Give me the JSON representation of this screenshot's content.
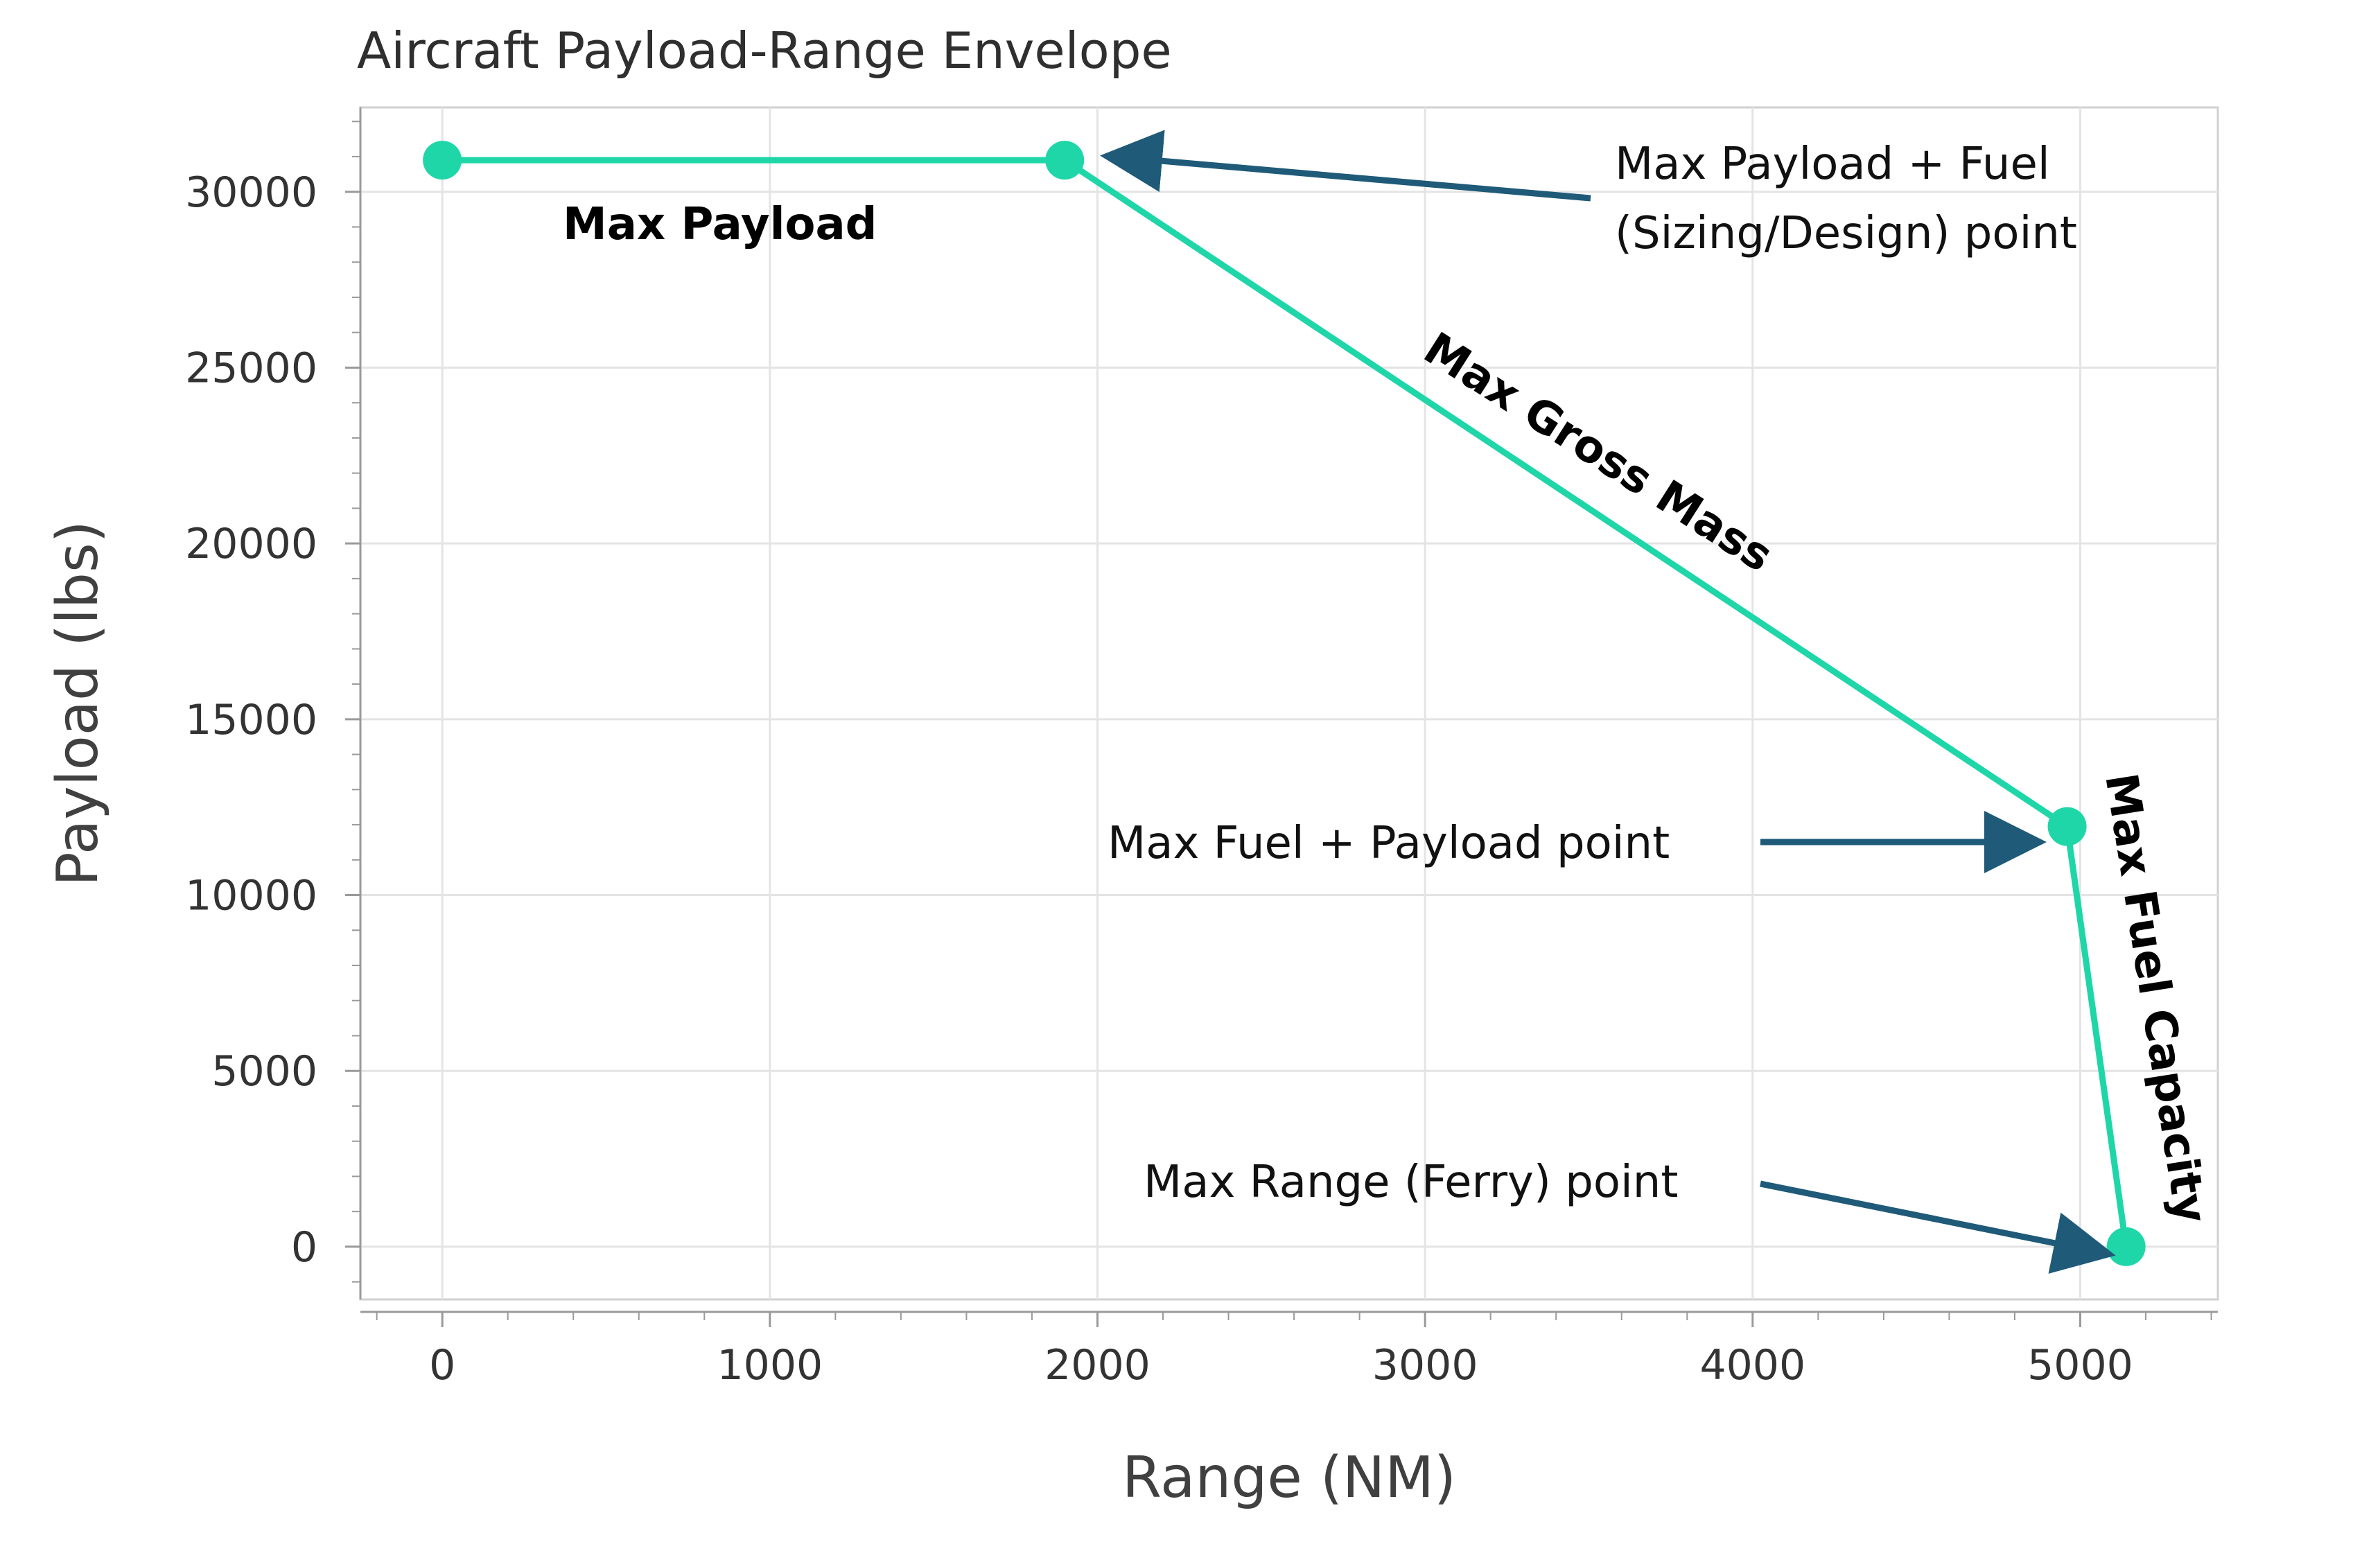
{
  "chart_data": {
    "type": "line",
    "title": "Aircraft Payload-Range Envelope",
    "xlabel": "Range (NM)",
    "ylabel": "Payload (lbs)",
    "xlim": [
      -250,
      5420
    ],
    "ylim": [
      -1500,
      32400
    ],
    "x_ticks": [
      0,
      1000,
      2000,
      3000,
      4000,
      5000
    ],
    "y_ticks": [
      0,
      5000,
      10000,
      15000,
      20000,
      25000,
      30000
    ],
    "grid": true,
    "series": [
      {
        "color": "#1fd6a8",
        "x": [
          0,
          1900,
          4960,
          5140
        ],
        "y": [
          30900,
          30900,
          11950,
          0
        ]
      }
    ],
    "segment_labels": {
      "max_payload": "Max Payload",
      "max_gross_mass": "Max Gross Mass",
      "max_fuel_capacity": "Max Fuel Capacity"
    },
    "annotations": {
      "design_point_line1": "Max Payload + Fuel",
      "design_point_line2": "(Sizing/Design) point",
      "max_fuel_payload": "Max Fuel + Payload point",
      "max_range": "Max Range (Ferry) point"
    },
    "colors": {
      "series": "#1fd6a8",
      "arrow": "#1f5a78",
      "grid": "#e4e4e4",
      "axis": "#9a9a9a"
    }
  }
}
